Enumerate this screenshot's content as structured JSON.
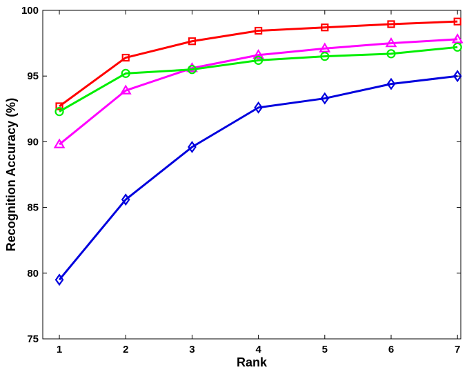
{
  "chart_data": {
    "type": "line",
    "title": "",
    "xlabel": "Rank",
    "ylabel": "Recognition Accuracy (%)",
    "x": [
      1,
      2,
      3,
      4,
      5,
      6,
      7
    ],
    "xlim": [
      0.75,
      7.05
    ],
    "ylim": [
      75,
      100
    ],
    "xticks": [
      1,
      2,
      3,
      4,
      5,
      6,
      7
    ],
    "yticks": [
      75,
      80,
      85,
      90,
      95,
      100
    ],
    "grid": false,
    "legend": "none",
    "series": [
      {
        "color": "#ff0000",
        "marker": "square",
        "values": [
          92.7,
          96.4,
          97.65,
          98.45,
          98.7,
          98.95,
          99.15
        ]
      },
      {
        "color": "#ff00ff",
        "marker": "triangle",
        "values": [
          89.8,
          93.9,
          95.6,
          96.6,
          97.1,
          97.5,
          97.8
        ]
      },
      {
        "color": "#00ee00",
        "marker": "circle",
        "values": [
          92.3,
          95.2,
          95.5,
          96.2,
          96.5,
          96.7,
          97.2
        ]
      },
      {
        "color": "#0000dd",
        "marker": "diamond",
        "values": [
          79.5,
          85.6,
          89.6,
          92.6,
          93.3,
          94.4,
          95.0
        ]
      }
    ]
  }
}
